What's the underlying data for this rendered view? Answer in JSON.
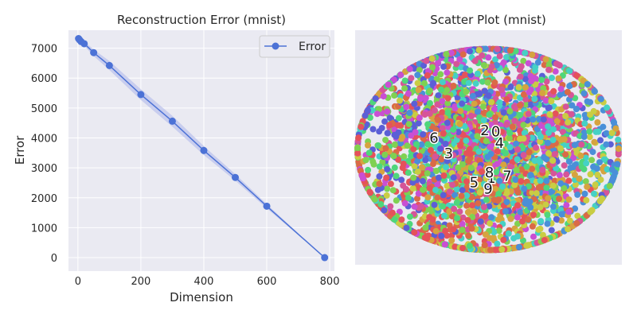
{
  "chart_data": [
    {
      "type": "line",
      "title": "Reconstruction Error (mnist)",
      "xlabel": "Dimension",
      "ylabel": "Error",
      "xlim": [
        -30,
        815
      ],
      "ylim": [
        -450,
        7600
      ],
      "xticks": [
        0,
        200,
        400,
        600,
        800
      ],
      "yticks": [
        0,
        1000,
        2000,
        3000,
        4000,
        5000,
        6000,
        7000
      ],
      "grid": true,
      "legend_position": "top-right",
      "series": [
        {
          "name": "Error",
          "color": "#4c72d6",
          "band_color": "#b9c1ec",
          "x": [
            2,
            5,
            10,
            20,
            50,
            100,
            200,
            300,
            400,
            500,
            600,
            784
          ],
          "y": [
            7320,
            7280,
            7220,
            7150,
            6850,
            6420,
            5450,
            4560,
            3580,
            2680,
            1720,
            0
          ],
          "band": [
            0,
            0,
            40,
            70,
            110,
            150,
            180,
            180,
            150,
            110,
            70,
            0
          ]
        }
      ]
    },
    {
      "type": "scatter",
      "title": "Scatter Plot (mnist)",
      "axes_visible": false,
      "grid": false,
      "class_labels": [
        {
          "label": "0",
          "x": 0.12,
          "y": 0.28
        },
        {
          "label": "1",
          "x": 0.05,
          "y": -0.45
        },
        {
          "label": "2",
          "x": -0.05,
          "y": 0.3
        },
        {
          "label": "3",
          "x": -0.62,
          "y": -0.06
        },
        {
          "label": "4",
          "x": 0.18,
          "y": 0.1
        },
        {
          "label": "5",
          "x": -0.22,
          "y": -0.52
        },
        {
          "label": "6",
          "x": -0.85,
          "y": 0.18
        },
        {
          "label": "7",
          "x": 0.3,
          "y": -0.42
        },
        {
          "label": "8",
          "x": 0.02,
          "y": -0.36
        },
        {
          "label": "9",
          "x": 0.0,
          "y": -0.62
        }
      ],
      "class_colors": [
        "#e5525a",
        "#da6a47",
        "#d6a33f",
        "#c9cd43",
        "#7fd152",
        "#4fd67b",
        "#45d1c5",
        "#4a8fd8",
        "#5b5fd6",
        "#c94fd3",
        "#d65598"
      ],
      "points_per_class": 300
    }
  ]
}
